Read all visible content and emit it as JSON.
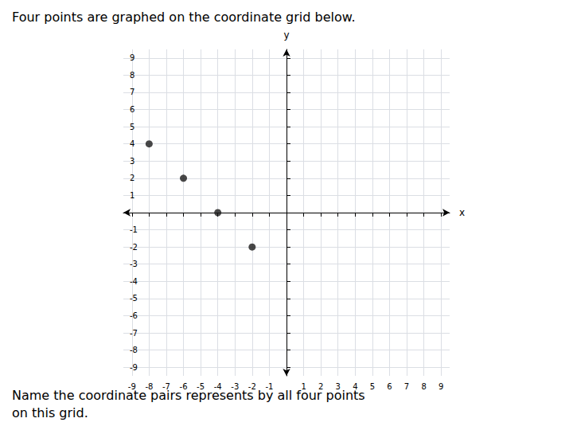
{
  "chart_data": {
    "type": "scatter",
    "title": "Four points are graphed on the coordinate grid below.",
    "subtitle": "Name the coordinate pairs represents by all four points\non this grid.",
    "x": [
      -8,
      -6,
      -4,
      -2
    ],
    "values": [
      4,
      2,
      0,
      -2
    ],
    "color": "#1a1a1a",
    "marker": "circle",
    "xlabel": "x",
    "ylabel": "y",
    "xlim": [
      -9.5,
      9.5
    ],
    "ylim": [
      -9.5,
      9.5
    ],
    "xticks": [
      -9,
      -8,
      -7,
      -6,
      -5,
      -4,
      -3,
      -2,
      -1,
      1,
      2,
      3,
      4,
      5,
      6,
      7,
      8,
      9
    ],
    "yticks": [
      -9,
      -8,
      -7,
      -6,
      -5,
      -4,
      -3,
      -2,
      -1,
      1,
      2,
      3,
      4,
      5,
      6,
      7,
      8,
      9
    ],
    "grid": true
  }
}
